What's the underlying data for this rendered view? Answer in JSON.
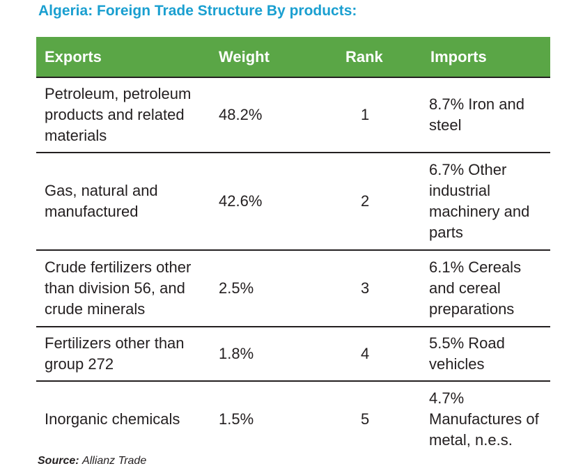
{
  "title": "Algeria: Foreign Trade Structure By products:",
  "table": {
    "headers": [
      "Exports",
      "Weight",
      "Rank",
      "Imports"
    ],
    "rows": [
      {
        "export": "Petroleum, petroleum products and related materials",
        "weight": "48.2%",
        "rank": "1",
        "import": "8.7% Iron and steel"
      },
      {
        "export": "Gas, natural and manufactured",
        "weight": "42.6%",
        "rank": "2",
        "import": "6.7% Other industrial machinery and parts"
      },
      {
        "export": "Crude fertilizers other than division 56, and crude minerals",
        "weight": "2.5%",
        "rank": "3",
        "import": "6.1% Cereals and cereal preparations"
      },
      {
        "export": "Fertilizers other than group 272",
        "weight": "1.8%",
        "rank": "4",
        "import": "5.5% Road vehicles"
      },
      {
        "export": "Inorganic chemicals",
        "weight": "1.5%",
        "rank": "5",
        "import": "4.7% Manufactures of metal, n.e.s."
      }
    ]
  },
  "source": {
    "label": "Source:",
    "value": "Allianz Trade"
  },
  "colors": {
    "title": "#1a9fd0",
    "header_bg": "#5aa646",
    "rule": "#231f20"
  }
}
